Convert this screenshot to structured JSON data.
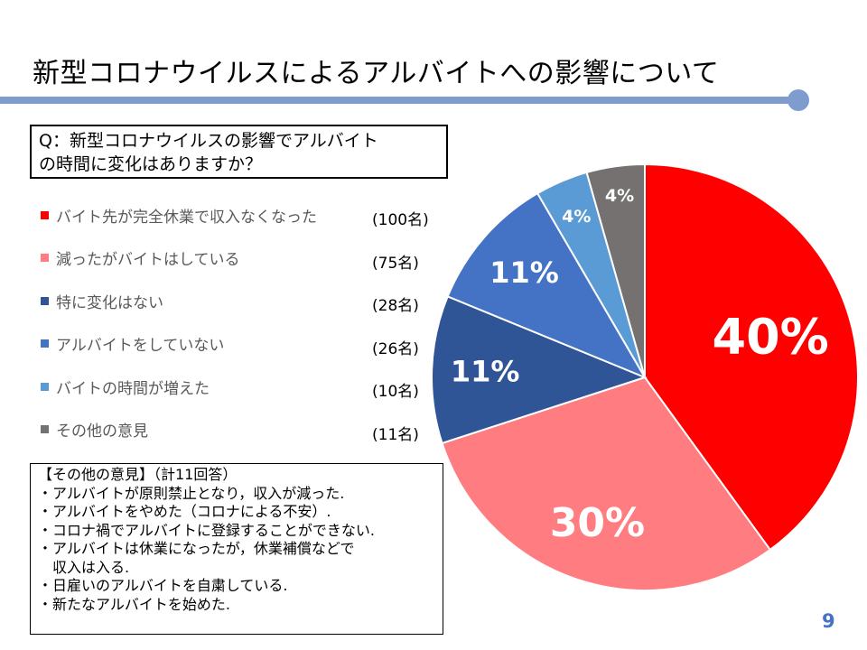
{
  "slide": {
    "title": "新型コロナウイルスによるアルバイトへの影響について",
    "page_number": "9",
    "accent_color": "#7f9ccf"
  },
  "question": {
    "line1": "Q：新型コロナウイルスの影響でアルバイト",
    "line2": "の時間に変化はありますか？"
  },
  "other_opinions": {
    "heading": "【その他の意見】（計11回答）",
    "items": [
      "・アルバイトが原則禁止となり，収入が減った.",
      "・アルバイトをやめた（コロナによる不安）.",
      "・コロナ禍でアルバイトに登録することができない.",
      "・アルバイトは休業になったが，休業補償などで",
      "　収入は入る.",
      "・日雇いのアルバイトを自粛している.",
      "・新たなアルバイトを始めた."
    ]
  },
  "chart_data": {
    "type": "pie",
    "title": "",
    "legend_position": "left",
    "slices": [
      {
        "label": "バイト先が完全休業で収入なくなった",
        "count": "(100名)",
        "value": 100,
        "percent_label": "40%",
        "color": "#ff0000"
      },
      {
        "label": "減ったがバイトはしている",
        "count": "(75名)",
        "value": 75,
        "percent_label": "30%",
        "color": "#ff7c80"
      },
      {
        "label": "特に変化はない",
        "count": "(28名)",
        "value": 28,
        "percent_label": "11%",
        "color": "#2f5597"
      },
      {
        "label": "アルバイトをしていない",
        "count": "(26名)",
        "value": 26,
        "percent_label": "11%",
        "color": "#4472c4"
      },
      {
        "label": "バイトの時間が増えた",
        "count": "(10名)",
        "value": 10,
        "percent_label": "4%",
        "color": "#5b9bd5"
      },
      {
        "label": "その他の意見",
        "count": "(11名)",
        "value": 11,
        "percent_label": "4%",
        "color": "#767171"
      }
    ]
  }
}
